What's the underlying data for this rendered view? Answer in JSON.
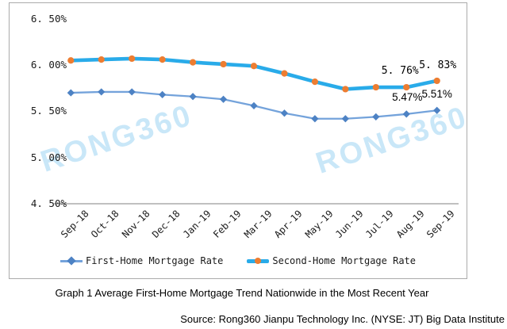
{
  "watermark": {
    "text": "RONG360",
    "color": "#C9E7F8"
  },
  "caption": "Graph 1 Average First-Home Mortgage Trend Nationwide in the Most Recent Year",
  "source": "Source: Rong360 Jianpu Technology Inc. (NYSE: JT) Big Data Institute",
  "colors": {
    "first_home_line": "#74A3DB",
    "first_home_marker": "#4D82C4",
    "second_home_line": "#29ABE9",
    "second_home_marker": "#ED7D31",
    "axis_line": "#9B9B9B",
    "chart_border": "#ABABAB",
    "text": "#1A1A1A"
  },
  "chart_data": {
    "type": "line",
    "title": "Graph 1 Average First-Home Mortgage Trend Nationwide in the Most Recent Year",
    "categories": [
      "Sep-18",
      "Oct-18",
      "Nov-18",
      "Dec-18",
      "Jan-19",
      "Feb-19",
      "Mar-19",
      "Apr-19",
      "May-19",
      "Jun-19",
      "Jul-19",
      "Aug-19",
      "Sep-19"
    ],
    "series": [
      {
        "name": "First-Home Mortgage Rate",
        "marker": "diamond",
        "line_color": "#74A3DB",
        "marker_color": "#4D82C4",
        "values": [
          5.7,
          5.71,
          5.71,
          5.68,
          5.66,
          5.63,
          5.56,
          5.48,
          5.42,
          5.42,
          5.44,
          5.47,
          5.51
        ],
        "labels": [
          {
            "index": 11,
            "text": "5.47%",
            "dx": 1,
            "dy": -14
          },
          {
            "index": 12,
            "text": "5.51%",
            "dx": 0,
            "dy": -13
          }
        ]
      },
      {
        "name": "Second-Home Mortgage Rate",
        "marker": "circle",
        "line_color": "#29ABE9",
        "marker_color": "#ED7D31",
        "values": [
          6.05,
          6.06,
          6.07,
          6.06,
          6.03,
          6.01,
          5.99,
          5.91,
          5.82,
          5.74,
          5.76,
          5.76,
          5.83
        ],
        "labels": [
          {
            "index": 11,
            "text": "5. 76%",
            "dx": -8,
            "dy": -13
          },
          {
            "index": 12,
            "text": "5. 83%",
            "dx": 1,
            "dy": -12
          }
        ]
      }
    ],
    "ylim": [
      4.5,
      6.5
    ],
    "yticks": [
      6.5,
      6.0,
      5.5,
      5.0,
      4.5
    ],
    "ytick_labels": [
      "6. 50%",
      "6. 00%",
      "5. 50%",
      "5. 00%",
      "4. 50%"
    ],
    "xlabel": "",
    "ylabel": "",
    "grid": false,
    "legend_position": "bottom"
  }
}
